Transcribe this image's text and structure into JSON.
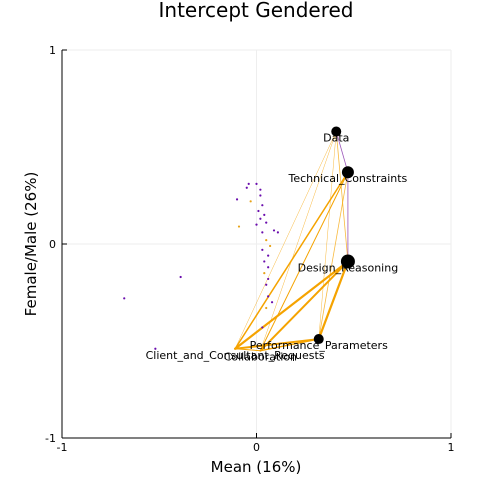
{
  "chart_data": {
    "type": "scatter",
    "title": "Intercept Gendered",
    "xlabel": "Mean (16%)",
    "ylabel": "Female/Male (26%)",
    "xlim": [
      -1,
      1
    ],
    "ylim": [
      -1,
      1
    ],
    "xticks": [
      "-1",
      "0",
      "1"
    ],
    "yticks": [
      "-1",
      "0",
      "1"
    ],
    "grid": true,
    "legend": "none",
    "colors": {
      "edge": "#F5A300",
      "edge_purple": "#7B1FA2",
      "point_purple": "#6A0DAD",
      "point_orange": "#E8A317",
      "node": "#000000",
      "axis": "#000000",
      "grid": "#EEEEEE"
    },
    "nodes": [
      {
        "label": "Data",
        "x": 0.41,
        "y": 0.58,
        "r": 5
      },
      {
        "label": "Technical_Constraints",
        "x": 0.47,
        "y": 0.37,
        "r": 6
      },
      {
        "label": "Design_Reasoning",
        "x": 0.47,
        "y": -0.09,
        "r": 7
      },
      {
        "label": "Performance_Parameters",
        "x": 0.32,
        "y": -0.49,
        "r": 5
      },
      {
        "label": "Collaboration",
        "x": 0.02,
        "y": -0.55,
        "r": 0
      },
      {
        "label": "Client_and_Consultant_Requests",
        "x": -0.11,
        "y": -0.54,
        "r": 0
      }
    ],
    "edges": [
      {
        "from": "Data",
        "to": "Technical_Constraints",
        "weight": 0.8,
        "color": "purple"
      },
      {
        "from": "Technical_Constraints",
        "to": "Design_Reasoning",
        "weight": 0.8,
        "color": "purple"
      },
      {
        "from": "Data",
        "to": "Design_Reasoning",
        "weight": 0.8
      },
      {
        "from": "Data",
        "to": "Performance_Parameters",
        "weight": 0.5
      },
      {
        "from": "Data",
        "to": "Collaboration",
        "weight": 0.5
      },
      {
        "from": "Data",
        "to": "Client_and_Consultant_Requests",
        "weight": 0.5
      },
      {
        "from": "Technical_Constraints",
        "to": "Performance_Parameters",
        "weight": 0.8
      },
      {
        "from": "Technical_Constraints",
        "to": "Collaboration",
        "weight": 1.0
      },
      {
        "from": "Technical_Constraints",
        "to": "Client_and_Consultant_Requests",
        "weight": 1.5
      },
      {
        "from": "Design_Reasoning",
        "to": "Performance_Parameters",
        "weight": 2.2
      },
      {
        "from": "Design_Reasoning",
        "to": "Collaboration",
        "weight": 2.0
      },
      {
        "from": "Design_Reasoning",
        "to": "Client_and_Consultant_Requests",
        "weight": 2.2
      },
      {
        "from": "Performance_Parameters",
        "to": "Collaboration",
        "weight": 1.5
      },
      {
        "from": "Performance_Parameters",
        "to": "Client_and_Consultant_Requests",
        "weight": 2.0
      },
      {
        "from": "Collaboration",
        "to": "Client_and_Consultant_Requests",
        "weight": 1.0
      }
    ],
    "points": [
      {
        "x": -0.04,
        "y": 0.31,
        "c": "purple"
      },
      {
        "x": 0.0,
        "y": 0.31,
        "c": "purple"
      },
      {
        "x": -0.05,
        "y": 0.29,
        "c": "purple"
      },
      {
        "x": 0.02,
        "y": 0.28,
        "c": "purple"
      },
      {
        "x": -0.1,
        "y": 0.23,
        "c": "purple"
      },
      {
        "x": -0.03,
        "y": 0.22,
        "c": "orange"
      },
      {
        "x": 0.02,
        "y": 0.25,
        "c": "purple"
      },
      {
        "x": 0.03,
        "y": 0.2,
        "c": "purple"
      },
      {
        "x": 0.01,
        "y": 0.17,
        "c": "purple"
      },
      {
        "x": 0.04,
        "y": 0.15,
        "c": "purple"
      },
      {
        "x": 0.02,
        "y": 0.13,
        "c": "purple"
      },
      {
        "x": -0.09,
        "y": 0.09,
        "c": "orange"
      },
      {
        "x": 0.0,
        "y": 0.1,
        "c": "purple"
      },
      {
        "x": 0.05,
        "y": 0.11,
        "c": "purple"
      },
      {
        "x": 0.09,
        "y": 0.07,
        "c": "purple"
      },
      {
        "x": 0.11,
        "y": 0.06,
        "c": "purple"
      },
      {
        "x": 0.03,
        "y": 0.06,
        "c": "purple"
      },
      {
        "x": 0.05,
        "y": 0.02,
        "c": "orange"
      },
      {
        "x": 0.07,
        "y": -0.01,
        "c": "orange"
      },
      {
        "x": 0.03,
        "y": -0.03,
        "c": "purple"
      },
      {
        "x": 0.06,
        "y": -0.06,
        "c": "purple"
      },
      {
        "x": 0.04,
        "y": -0.09,
        "c": "purple"
      },
      {
        "x": 0.06,
        "y": -0.12,
        "c": "purple"
      },
      {
        "x": 0.04,
        "y": -0.15,
        "c": "orange"
      },
      {
        "x": 0.06,
        "y": -0.18,
        "c": "purple"
      },
      {
        "x": 0.05,
        "y": -0.21,
        "c": "purple"
      },
      {
        "x": -0.39,
        "y": -0.17,
        "c": "purple"
      },
      {
        "x": 0.06,
        "y": -0.27,
        "c": "purple"
      },
      {
        "x": 0.08,
        "y": -0.3,
        "c": "purple"
      },
      {
        "x": 0.05,
        "y": -0.33,
        "c": "orange"
      },
      {
        "x": -0.68,
        "y": -0.28,
        "c": "purple"
      },
      {
        "x": 0.03,
        "y": -0.43,
        "c": "purple"
      },
      {
        "x": -0.52,
        "y": -0.54,
        "c": "purple"
      }
    ]
  }
}
